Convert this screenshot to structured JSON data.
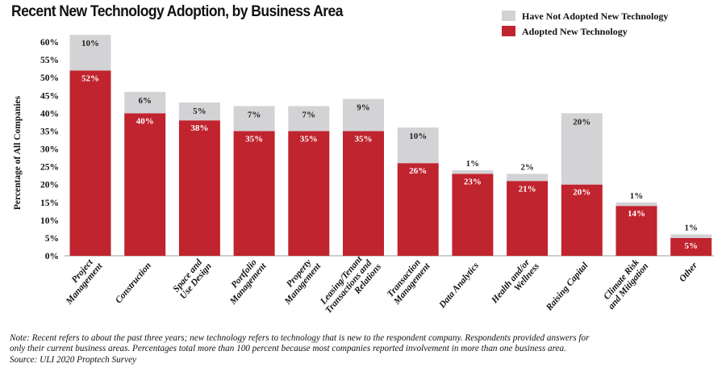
{
  "chart_data": {
    "type": "bar",
    "stacked": true,
    "title": "Recent New Technology Adoption, by Business Area",
    "xlabel": "",
    "ylabel": "Percentage of All Companies",
    "ylim": [
      0,
      60
    ],
    "yticks": [
      "0%",
      "5%",
      "10%",
      "15%",
      "20%",
      "25%",
      "30%",
      "35%",
      "40%",
      "45%",
      "50%",
      "55%",
      "60%"
    ],
    "legend_placement": "top-right",
    "categories": [
      [
        "Project",
        "Management"
      ],
      [
        "Construction"
      ],
      [
        "Space and",
        "Use Design"
      ],
      [
        "Portfolio",
        "Management"
      ],
      [
        "Property",
        "Management"
      ],
      [
        "Leasing/Tenant",
        "Transactions and",
        "Relations"
      ],
      [
        "Transaction",
        "Management"
      ],
      [
        "Data Analytics"
      ],
      [
        "Health and/or",
        "Wellness"
      ],
      [
        "Raising Capital"
      ],
      [
        "Climate Risk",
        "and Mitigation"
      ],
      [
        "Other"
      ]
    ],
    "series": [
      {
        "name": "Adopted New Technology",
        "color": "#c0242f",
        "values": [
          52,
          40,
          38,
          35,
          35,
          35,
          26,
          23,
          21,
          20,
          14,
          5
        ],
        "labels": [
          "52%",
          "40%",
          "38%",
          "35%",
          "35%",
          "35%",
          "26%",
          "23%",
          "21%",
          "20%",
          "14%",
          "5%"
        ]
      },
      {
        "name": "Have Not Adopted New Technology",
        "color": "#d3d3d5",
        "values": [
          10,
          6,
          5,
          7,
          7,
          9,
          10,
          1,
          2,
          20,
          1,
          1
        ],
        "labels": [
          "10%",
          "6%",
          "5%",
          "7%",
          "7%",
          "9%",
          "10%",
          "1%",
          "2%",
          "20%",
          "1%",
          "1%"
        ]
      }
    ]
  },
  "note": {
    "line1": "Note: Recent refers to about the past three years; new technology refers to technology that is new to the respondent company. Respondents provided answers for",
    "line2": "only their current business areas. Percentages total more than 100 percent because most companies reported involvement in more than one business area.",
    "source": "Source: ULI 2020 Proptech Survey"
  }
}
